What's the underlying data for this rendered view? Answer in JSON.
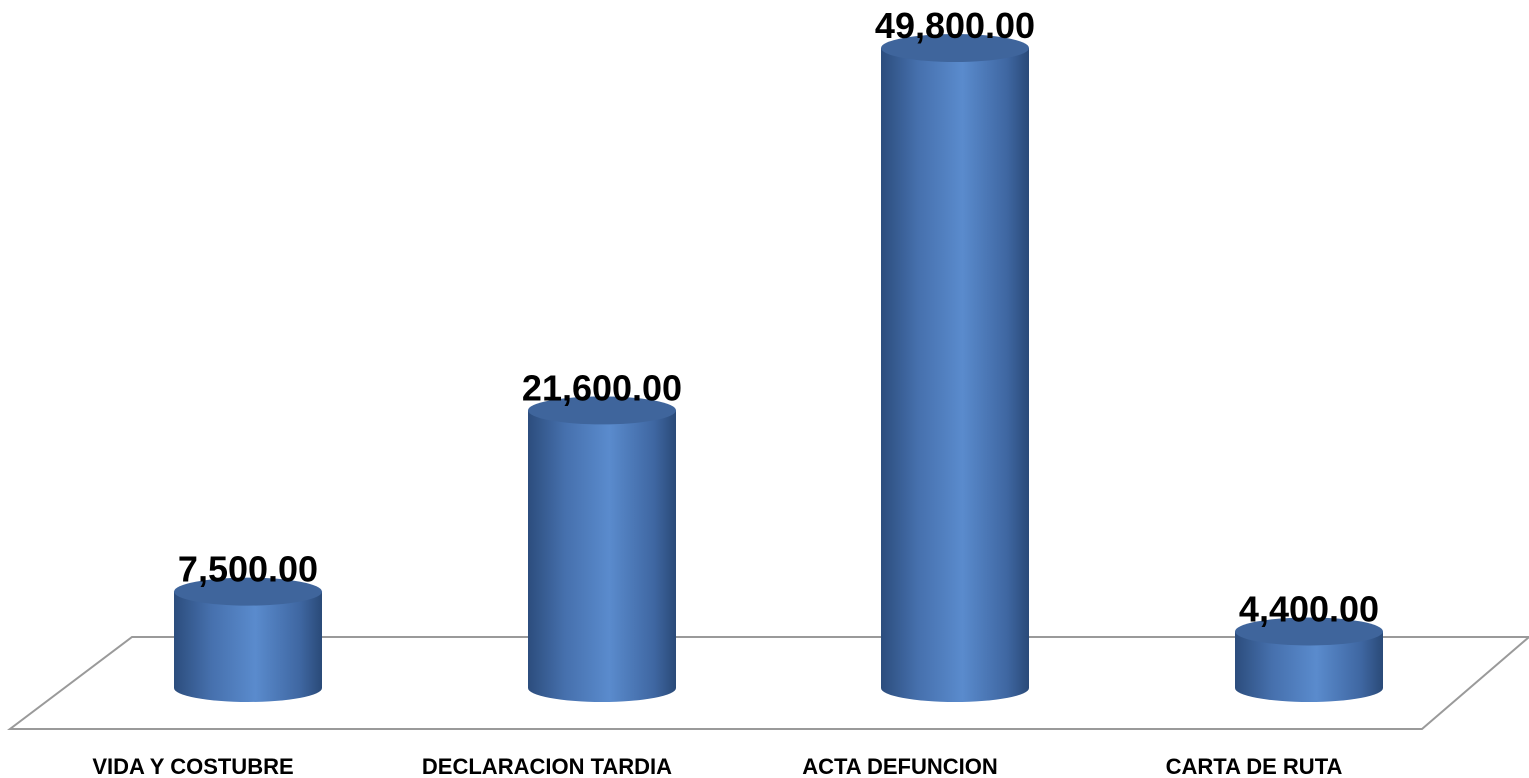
{
  "chart_data": {
    "type": "cylinder",
    "categories": [
      "VIDA Y COSTUBRE",
      "DECLARACION TARDIA",
      "ACTA DEFUNCION",
      "CARTA DE RUTA"
    ],
    "values": [
      7500,
      21600,
      49800,
      4400
    ],
    "value_labels": [
      "7,500.00",
      "21,600.00",
      "49,800.00",
      "4,400.00"
    ],
    "color": "#4f81bd"
  }
}
